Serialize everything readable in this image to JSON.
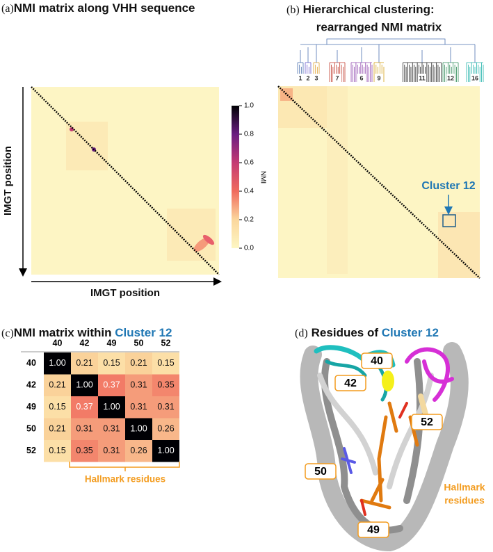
{
  "panel_a": {
    "label": "(a)",
    "title": "NMI matrix along VHH sequence",
    "x_label": "IMGT position",
    "y_label": "IMGT position",
    "colorbar": {
      "label": "NMI",
      "ticks": [
        {
          "value": 0,
          "label": "0.0"
        },
        {
          "value": 0.2,
          "label": "0.2"
        },
        {
          "value": 0.4,
          "label": "0.4"
        },
        {
          "value": 0.6,
          "label": "0.6"
        },
        {
          "value": 0.8,
          "label": "0.8"
        },
        {
          "value": 1,
          "label": "1.0"
        }
      ]
    }
  },
  "panel_b": {
    "label": "(b)",
    "title_lines": [
      "Hierarchical clustering:",
      "rearranged NMI matrix"
    ],
    "cluster_labels": [
      "1",
      "2",
      "3",
      "7",
      "6",
      "9",
      "11",
      "12",
      "16"
    ],
    "annotation": "Cluster 12"
  },
  "panel_c": {
    "label": "(c)",
    "title": "NMI matrix within ",
    "title_highlight": "Cluster 12",
    "table": {
      "columns": [
        "40",
        "42",
        "49",
        "50",
        "52"
      ],
      "rows": [
        {
          "header": "40",
          "cells": [
            "1.00",
            "0.21",
            "0.15",
            "0.21",
            "0.15"
          ]
        },
        {
          "header": "42",
          "cells": [
            "0.21",
            "1.00",
            "0.37",
            "0.31",
            "0.35"
          ]
        },
        {
          "header": "49",
          "cells": [
            "0.15",
            "0.37",
            "1.00",
            "0.31",
            "0.31"
          ]
        },
        {
          "header": "50",
          "cells": [
            "0.21",
            "0.31",
            "0.31",
            "1.00",
            "0.26"
          ]
        },
        {
          "header": "52",
          "cells": [
            "0.15",
            "0.35",
            "0.31",
            "0.26",
            "1.00"
          ]
        }
      ]
    },
    "bracket_label": "Hallmark residues"
  },
  "panel_d": {
    "label": "(d)",
    "title": "Residues of ",
    "title_highlight": "Cluster 12",
    "residue_labels": [
      "40",
      "42",
      "52",
      "50",
      "49"
    ],
    "annotation_lines": [
      "Hallmark",
      "residues"
    ]
  }
}
